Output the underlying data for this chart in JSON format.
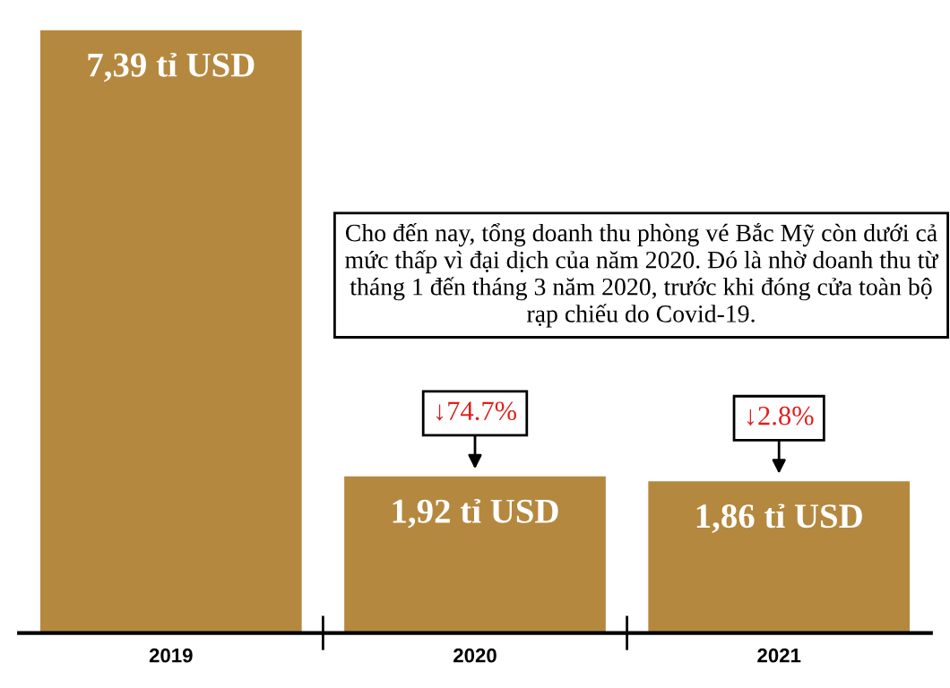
{
  "chart_data": {
    "type": "bar",
    "categories": [
      "2019",
      "2020",
      "2021"
    ],
    "values": [
      7.39,
      1.92,
      1.86
    ],
    "color": "#b5883f",
    "value_labels": [
      "7,39 tỉ USD",
      "1,92 tỉ USD",
      "1,86 tỉ USD"
    ],
    "tick_labels": "x",
    "grid": false,
    "legend": false,
    "annotations": [
      "Cho đến nay, tổng doanh thu phòng vé Bắc Mỹ còn dưới cả mức thấp vì đại dịch của năm 2020. Đó là nhờ doanh thu từ tháng 1 đến tháng 3 năm 2020, trước khi đóng cửa toàn bộ rạp chiếu do Covid-19.",
      {
        "text": "↓74.7%",
        "x": "2020",
        "y": 1.92
      },
      {
        "text": "↓2.8%",
        "x": "2021",
        "y": 1.86
      }
    ]
  }
}
